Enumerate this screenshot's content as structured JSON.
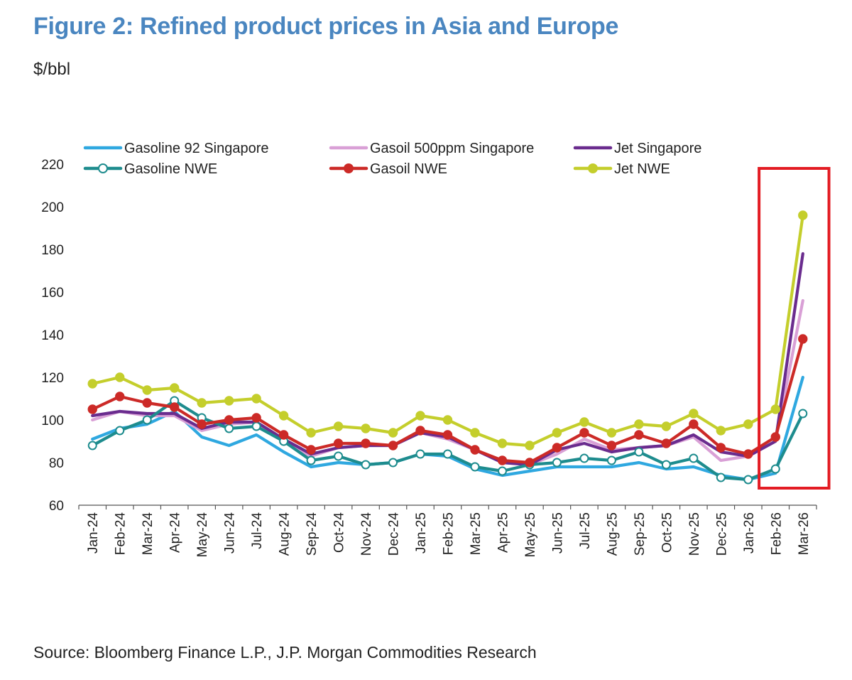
{
  "title": "Figure 2: Refined product prices in Asia and Europe",
  "unit_label": "$/bbl",
  "source": "Source: Bloomberg Finance L.P., J.P. Morgan Commodities Research",
  "chart_data": {
    "type": "line",
    "title": "Figure 2: Refined product prices in Asia and Europe",
    "ylabel": "$/bbl",
    "xlabel": "",
    "ylim": [
      60,
      220
    ],
    "yticks": [
      60,
      80,
      100,
      120,
      140,
      160,
      180,
      200,
      220
    ],
    "grid": false,
    "legend": "top",
    "categories": [
      "Jan-24",
      "Feb-24",
      "Mar-24",
      "Apr-24",
      "May-24",
      "Jun-24",
      "Jul-24",
      "Aug-24",
      "Sep-24",
      "Oct-24",
      "Nov-24",
      "Dec-24",
      "Jan-25",
      "Feb-25",
      "Mar-25",
      "Apr-25",
      "May-25",
      "Jun-25",
      "Jul-25",
      "Aug-25",
      "Sep-25",
      "Oct-25",
      "Nov-25",
      "Dec-25",
      "Jan-26",
      "Feb-26",
      "Mar-26"
    ],
    "series": [
      {
        "name": "Gasoline 92 Singapore",
        "color": "#2fa8e0",
        "marker": "none",
        "values": [
          91,
          96,
          98,
          104,
          92,
          88,
          93,
          85,
          78,
          80,
          79,
          80,
          84,
          83,
          77,
          74,
          76,
          78,
          78,
          78,
          80,
          77,
          78,
          74,
          72,
          75,
          120
        ]
      },
      {
        "name": "Gasoil 500ppm Singapore",
        "color": "#d9a0d6",
        "marker": "none",
        "values": [
          100,
          104,
          102,
          102,
          95,
          98,
          99,
          90,
          83,
          87,
          88,
          88,
          94,
          91,
          86,
          80,
          79,
          84,
          91,
          86,
          87,
          88,
          92,
          81,
          83,
          90,
          156
        ]
      },
      {
        "name": "Jet Singapore",
        "color": "#6a2c8e",
        "marker": "none",
        "values": [
          102,
          104,
          103,
          103,
          96,
          99,
          99,
          91,
          84,
          87,
          88,
          88,
          94,
          92,
          86,
          80,
          79,
          86,
          89,
          85,
          87,
          88,
          93,
          85,
          83,
          90,
          178
        ]
      },
      {
        "name": "Gasoline NWE",
        "color": "#1e8c8e",
        "marker": "open",
        "values": [
          88,
          95,
          100,
          109,
          101,
          96,
          97,
          90,
          81,
          83,
          79,
          80,
          84,
          84,
          78,
          76,
          79,
          80,
          82,
          81,
          85,
          79,
          82,
          73,
          72,
          77,
          103
        ]
      },
      {
        "name": "Gasoil NWE",
        "color": "#cc2a27",
        "marker": "filled",
        "values": [
          105,
          111,
          108,
          106,
          98,
          100,
          101,
          93,
          86,
          89,
          89,
          88,
          95,
          93,
          86,
          81,
          80,
          87,
          94,
          88,
          93,
          89,
          98,
          87,
          84,
          92,
          138
        ]
      },
      {
        "name": "Jet NWE",
        "color": "#c4ce2c",
        "marker": "filled",
        "values": [
          117,
          120,
          114,
          115,
          108,
          109,
          110,
          102,
          94,
          97,
          96,
          94,
          102,
          100,
          94,
          89,
          88,
          94,
          99,
          94,
          98,
          97,
          103,
          95,
          98,
          105,
          196
        ]
      }
    ],
    "annotation": {
      "type": "highlight-box",
      "color": "#e31c23",
      "covers_categories": [
        "Feb-26",
        "Mar-26"
      ]
    }
  }
}
